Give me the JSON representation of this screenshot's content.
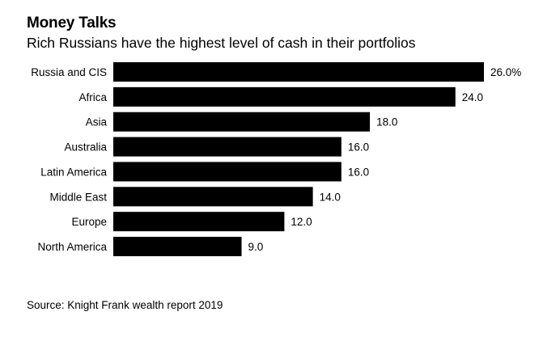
{
  "header": {
    "title": "Money Talks",
    "subtitle": "Rich Russians have the highest level of cash in their portfolios"
  },
  "footer": {
    "source": "Source: Knight Frank wealth report 2019"
  },
  "colors": {
    "bar": "#000000",
    "text": "#000000",
    "background": "#ffffff"
  },
  "chart_data": {
    "type": "bar",
    "orientation": "horizontal",
    "categories": [
      "Russia and CIS",
      "Africa",
      "Asia",
      "Australia",
      "Latin America",
      "Middle East",
      "Europe",
      "North America"
    ],
    "values": [
      26.0,
      24.0,
      18.0,
      16.0,
      16.0,
      14.0,
      12.0,
      9.0
    ],
    "value_labels": [
      "26.0%",
      "24.0",
      "18.0",
      "16.0",
      "16.0",
      "14.0",
      "12.0",
      "9.0"
    ],
    "xlim": [
      0,
      26
    ],
    "grid": false,
    "legend": "none"
  }
}
